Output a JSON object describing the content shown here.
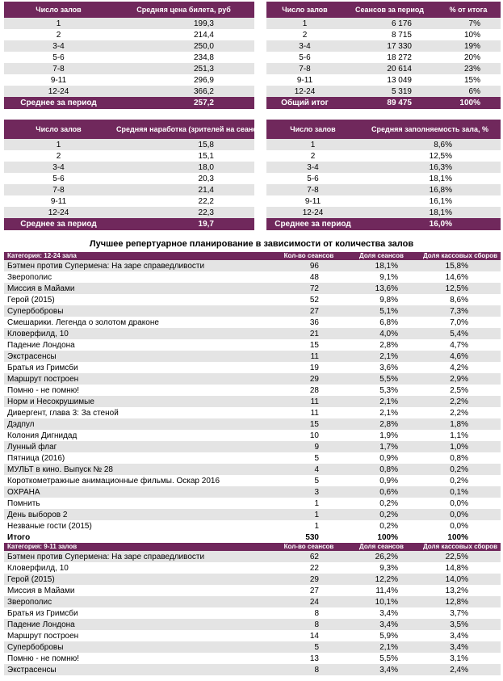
{
  "tables": [
    {
      "header": [
        "Число залов",
        "Средняя цена билета, руб"
      ],
      "rows": [
        [
          "1",
          "199,3"
        ],
        [
          "2",
          "214,4"
        ],
        [
          "3-4",
          "250,0"
        ],
        [
          "5-6",
          "234,8"
        ],
        [
          "7-8",
          "251,3"
        ],
        [
          "9-11",
          "296,9"
        ],
        [
          "12-24",
          "366,2"
        ]
      ],
      "footer": [
        "Среднее за период",
        "257,2"
      ]
    },
    {
      "header": [
        "Число залов",
        "Сеансов за период",
        "% от итога"
      ],
      "rows": [
        [
          "1",
          "6 176",
          "7%"
        ],
        [
          "2",
          "8 715",
          "10%"
        ],
        [
          "3-4",
          "17 330",
          "19%"
        ],
        [
          "5-6",
          "18 272",
          "20%"
        ],
        [
          "7-8",
          "20 614",
          "23%"
        ],
        [
          "9-11",
          "13 049",
          "15%"
        ],
        [
          "12-24",
          "5 319",
          "6%"
        ]
      ],
      "footer": [
        "Общий итог",
        "89 475",
        "100%"
      ]
    },
    {
      "header": [
        "Число залов",
        "Средняя наработка (зрителей на сеанс)"
      ],
      "rows": [
        [
          "1",
          "15,8"
        ],
        [
          "2",
          "15,1"
        ],
        [
          "3-4",
          "18,0"
        ],
        [
          "5-6",
          "20,3"
        ],
        [
          "7-8",
          "21,4"
        ],
        [
          "9-11",
          "22,2"
        ],
        [
          "12-24",
          "22,3"
        ]
      ],
      "footer": [
        "Среднее за период",
        "19,7"
      ]
    },
    {
      "header": [
        "Число залов",
        "Средняя заполняемость зала, %"
      ],
      "rows": [
        [
          "1",
          "8,6%"
        ],
        [
          "2",
          "12,5%"
        ],
        [
          "3-4",
          "16,3%"
        ],
        [
          "5-6",
          "18,1%"
        ],
        [
          "7-8",
          "16,8%"
        ],
        [
          "9-11",
          "16,1%"
        ],
        [
          "12-24",
          "18,1%"
        ]
      ],
      "footer": [
        "Среднее за период",
        "16,0%"
      ]
    }
  ],
  "title": "Лучшее репертуарное планирование в зависимости от количества залов",
  "sections": [
    {
      "header": [
        "Категория: 12-24 зала",
        "Кол-во сеансов",
        "Доля сеансов",
        "Доля кассовых сборов"
      ],
      "rows": [
        [
          "Бэтмен против Супермена: На заре справедливости",
          "96",
          "18,1%",
          "15,8%"
        ],
        [
          "Зверополис",
          "48",
          "9,1%",
          "14,6%"
        ],
        [
          "Миссия в Майами",
          "72",
          "13,6%",
          "12,5%"
        ],
        [
          "Герой (2015)",
          "52",
          "9,8%",
          "8,6%"
        ],
        [
          "Супербобровы",
          "27",
          "5,1%",
          "7,3%"
        ],
        [
          "Смешарики. Легенда о золотом драконе",
          "36",
          "6,8%",
          "7,0%"
        ],
        [
          "Кловерфилд, 10",
          "21",
          "4,0%",
          "5,4%"
        ],
        [
          "Падение Лондона",
          "15",
          "2,8%",
          "4,7%"
        ],
        [
          "Экстрасенсы",
          "11",
          "2,1%",
          "4,6%"
        ],
        [
          "Братья из Гримсби",
          "19",
          "3,6%",
          "4,2%"
        ],
        [
          "Маршрут построен",
          "29",
          "5,5%",
          "2,9%"
        ],
        [
          "Помню - не помню!",
          "28",
          "5,3%",
          "2,5%"
        ],
        [
          "Норм и Несокрушимые",
          "11",
          "2,1%",
          "2,2%"
        ],
        [
          "Дивергент, глава 3: За стеной",
          "11",
          "2,1%",
          "2,2%"
        ],
        [
          "Дэдпул",
          "15",
          "2,8%",
          "1,8%"
        ],
        [
          "Колония Дигнидад",
          "10",
          "1,9%",
          "1,1%"
        ],
        [
          "Лунный флаг",
          "9",
          "1,7%",
          "1,0%"
        ],
        [
          "Пятница (2016)",
          "5",
          "0,9%",
          "0,8%"
        ],
        [
          "МУЛЬТ в кино. Выпуск № 28",
          "4",
          "0,8%",
          "0,2%"
        ],
        [
          "Короткометражные анимационные фильмы. Оскар 2016",
          "5",
          "0,9%",
          "0,2%"
        ],
        [
          "ОХРАНА",
          "3",
          "0,6%",
          "0,1%"
        ],
        [
          "Помнить",
          "1",
          "0,2%",
          "0,0%"
        ],
        [
          "День выборов 2",
          "1",
          "0,2%",
          "0,0%"
        ],
        [
          "Незваные гости (2015)",
          "1",
          "0,2%",
          "0,0%"
        ]
      ],
      "total": [
        "Итого",
        "530",
        "100%",
        "100%"
      ]
    },
    {
      "header": [
        "Категория: 9-11 залов",
        "Кол-во сеансов",
        "Доля сеансов",
        "Доля кассовых сборов"
      ],
      "rows": [
        [
          "Бэтмен против Супермена: На заре справедливости",
          "62",
          "26,2%",
          "22,5%"
        ],
        [
          "Кловерфилд, 10",
          "22",
          "9,3%",
          "14,8%"
        ],
        [
          "Герой (2015)",
          "29",
          "12,2%",
          "14,0%"
        ],
        [
          "Миссия в Майами",
          "27",
          "11,4%",
          "13,2%"
        ],
        [
          "Зверополис",
          "24",
          "10,1%",
          "12,8%"
        ],
        [
          "Братья из Гримсби",
          "8",
          "3,4%",
          "3,7%"
        ],
        [
          "Падение Лондона",
          "8",
          "3,4%",
          "3,5%"
        ],
        [
          "Маршрут построен",
          "14",
          "5,9%",
          "3,4%"
        ],
        [
          "Супербобровы",
          "5",
          "2,1%",
          "3,4%"
        ],
        [
          "Помню - не помню!",
          "13",
          "5,5%",
          "3,1%"
        ],
        [
          "Экстрасенсы",
          "8",
          "3,4%",
          "2,4%"
        ]
      ]
    }
  ]
}
